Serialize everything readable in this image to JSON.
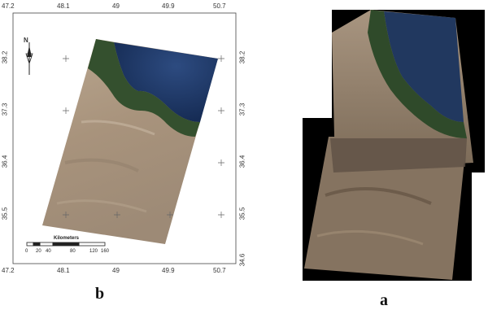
{
  "panel_b": {
    "letter": "b",
    "top_ticks": [
      "47.2",
      "48.1",
      "49",
      "49.9",
      "50.7"
    ],
    "bottom_ticks": [
      "47.2",
      "48.1",
      "49",
      "49.9",
      "50.7"
    ],
    "left_ticks": [
      "38.2",
      "37.3",
      "36.4",
      "35.5"
    ],
    "right_ticks": [
      "38.2",
      "37.3",
      "36.4",
      "35.5",
      "34.6"
    ],
    "north_label": "N",
    "scale_title": "Kilometers",
    "scale_values": [
      "0",
      "20",
      "40",
      "80",
      "120",
      "160"
    ]
  },
  "panel_a": {
    "letter": "a"
  },
  "colors": {
    "sea": "#1f3a6b",
    "forest": "#2f4a2a",
    "land": "#a89682",
    "frame": "#333333"
  }
}
